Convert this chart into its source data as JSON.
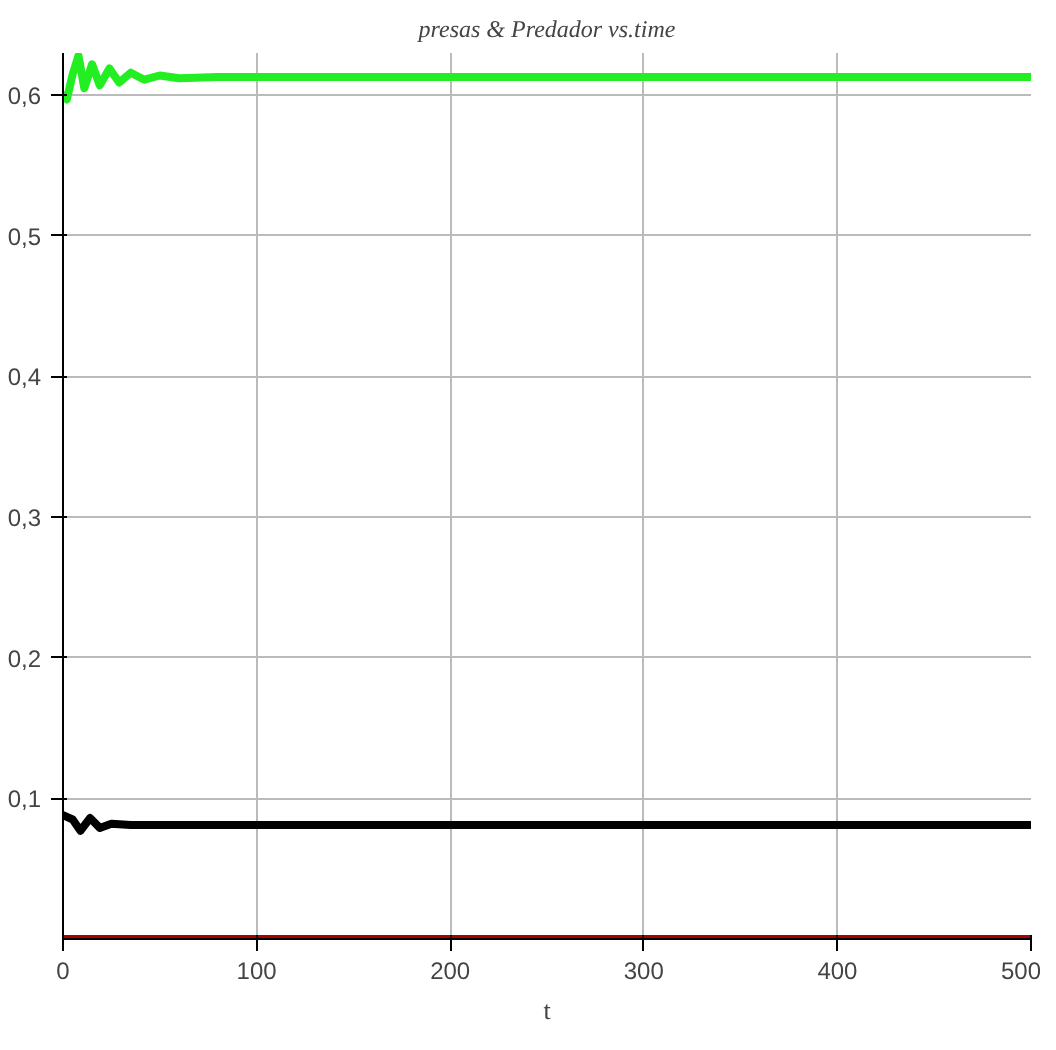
{
  "chart_data": {
    "type": "line",
    "title": "presas & Predador vs.time",
    "xlabel": "t",
    "xlim": [
      0,
      500
    ],
    "ylim": [
      0,
      0.63
    ],
    "xticks": [
      0,
      100,
      200,
      300,
      400,
      500
    ],
    "yticks": [
      {
        "value": 0.1,
        "label": "0,1"
      },
      {
        "value": 0.2,
        "label": "0,2"
      },
      {
        "value": 0.3,
        "label": "0,3"
      },
      {
        "value": 0.4,
        "label": "0,4"
      },
      {
        "value": 0.5,
        "label": "0,5"
      },
      {
        "value": 0.6,
        "label": "0,6"
      }
    ],
    "grid": true,
    "line_style": "solid",
    "series": [
      {
        "color": "#22ee22",
        "x": [
          0,
          2,
          5,
          8,
          11,
          15,
          19,
          24,
          29,
          35,
          42,
          50,
          60,
          80,
          500
        ],
        "values": [
          0.6,
          0.597,
          0.615,
          0.628,
          0.605,
          0.622,
          0.607,
          0.619,
          0.609,
          0.616,
          0.611,
          0.614,
          0.612,
          0.613,
          0.613
        ]
      },
      {
        "color": "#000000",
        "x": [
          0,
          5,
          9,
          14,
          19,
          25,
          35,
          500
        ],
        "values": [
          0.088,
          0.085,
          0.077,
          0.086,
          0.079,
          0.082,
          0.081,
          0.081
        ]
      },
      {
        "color": "#aa0000",
        "x": [
          0,
          500
        ],
        "values": [
          0,
          0
        ]
      }
    ]
  }
}
